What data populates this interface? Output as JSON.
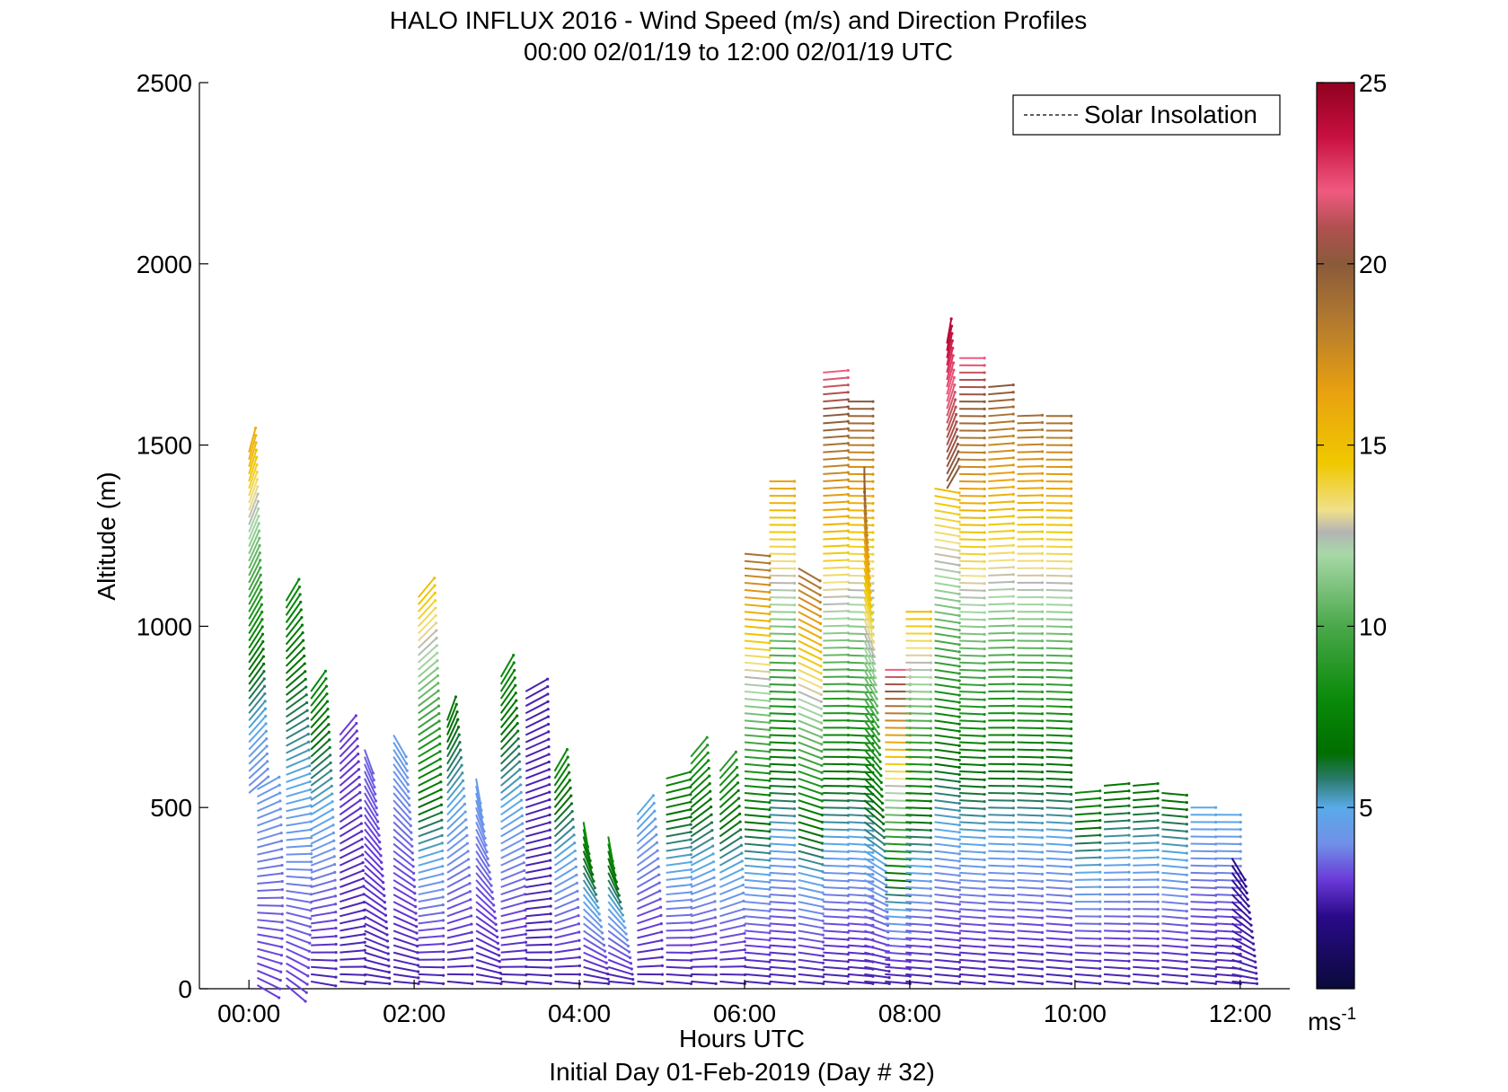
{
  "chart_data": {
    "type": "scatter",
    "title": "HALO INFLUX 2016 - Wind Speed (m/s) and Direction Profiles",
    "subtitle": "00:00 02/01/19 to 12:00 02/01/19  UTC",
    "xlabel": "Hours UTC",
    "xlabel2": "Initial Day 01-Feb-2019 (Day # 32)",
    "ylabel": "Altitude (m)",
    "xlim": [
      -0.6,
      12.6
    ],
    "ylim": [
      0,
      2500
    ],
    "x_ticks": [
      {
        "value": 0,
        "label": "00:00"
      },
      {
        "value": 2,
        "label": "02:00"
      },
      {
        "value": 4,
        "label": "04:00"
      },
      {
        "value": 6,
        "label": "06:00"
      },
      {
        "value": 8,
        "label": "08:00"
      },
      {
        "value": 10,
        "label": "10:00"
      },
      {
        "value": 12,
        "label": "12:00"
      }
    ],
    "y_ticks": [
      {
        "value": 0,
        "label": "0"
      },
      {
        "value": 500,
        "label": "500"
      },
      {
        "value": 1000,
        "label": "1000"
      },
      {
        "value": 1500,
        "label": "1500"
      },
      {
        "value": 2000,
        "label": "2000"
      },
      {
        "value": 2500,
        "label": "2500"
      }
    ],
    "grid": false,
    "legend": {
      "position": "top-right",
      "entries": [
        "Solar Insolation"
      ]
    },
    "colorbar": {
      "min": 0,
      "max": 25,
      "unit": "ms",
      "unit_sup": "-1",
      "ticks": [
        {
          "value": 5,
          "label": "5"
        },
        {
          "value": 10,
          "label": "10"
        },
        {
          "value": 15,
          "label": "15"
        },
        {
          "value": 20,
          "label": "20"
        },
        {
          "value": 25,
          "label": "25"
        }
      ],
      "stops": [
        {
          "v": 0,
          "color": "#0a0a3a"
        },
        {
          "v": 2,
          "color": "#2a0a8a"
        },
        {
          "v": 3,
          "color": "#6a3ad8"
        },
        {
          "v": 4,
          "color": "#7090e8"
        },
        {
          "v": 5,
          "color": "#5aaae8"
        },
        {
          "v": 5.8,
          "color": "#2a7a6a"
        },
        {
          "v": 6.5,
          "color": "#006e00"
        },
        {
          "v": 8,
          "color": "#0a8a0a"
        },
        {
          "v": 10,
          "color": "#4aa84a"
        },
        {
          "v": 12,
          "color": "#a8d8a8"
        },
        {
          "v": 12.6,
          "color": "#b4b4b4"
        },
        {
          "v": 13.2,
          "color": "#f0e08a"
        },
        {
          "v": 14.5,
          "color": "#f0c800"
        },
        {
          "v": 16.5,
          "color": "#e8a010"
        },
        {
          "v": 18.5,
          "color": "#b07830"
        },
        {
          "v": 20,
          "color": "#8a5a3a"
        },
        {
          "v": 21,
          "color": "#b05050"
        },
        {
          "v": 22,
          "color": "#f05a80"
        },
        {
          "v": 23.5,
          "color": "#c81040"
        },
        {
          "v": 25,
          "color": "#900020"
        }
      ]
    },
    "profiles": [
      {
        "t": 0.0,
        "z_top": 1490,
        "z_bot": 540,
        "s_top": 16,
        "s_bot": 4,
        "dir_top": 15,
        "dir_bot": 50
      },
      {
        "t": 0.1,
        "z_top": 560,
        "z_bot": 10,
        "s_top": 4.5,
        "s_bot": 3,
        "dir_top": 60,
        "dir_bot": 120
      },
      {
        "t": 0.45,
        "z_top": 1080,
        "z_bot": 10,
        "s_top": 8,
        "s_bot": 3,
        "dir_top": 30,
        "dir_bot": 130
      },
      {
        "t": 0.75,
        "z_top": 830,
        "z_bot": 20,
        "s_top": 8,
        "s_bot": 2.5,
        "dir_top": 35,
        "dir_bot": 100
      },
      {
        "t": 1.1,
        "z_top": 700,
        "z_bot": 20,
        "s_top": 3,
        "s_bot": 2.5,
        "dir_top": 40,
        "dir_bot": 95
      },
      {
        "t": 1.4,
        "z_top": 660,
        "z_bot": 20,
        "s_top": 3.5,
        "s_bot": 2.5,
        "dir_top": 160,
        "dir_bot": 95
      },
      {
        "t": 1.75,
        "z_top": 700,
        "z_bot": 20,
        "s_top": 4.5,
        "s_bot": 2.5,
        "dir_top": 150,
        "dir_bot": 95
      },
      {
        "t": 2.05,
        "z_top": 1080,
        "z_bot": 20,
        "s_top": 15,
        "s_bot": 2.5,
        "dir_top": 40,
        "dir_bot": 95
      },
      {
        "t": 2.4,
        "z_top": 740,
        "z_bot": 20,
        "s_top": 7,
        "s_bot": 2.5,
        "dir_top": 20,
        "dir_bot": 95
      },
      {
        "t": 2.75,
        "z_top": 580,
        "z_bot": 20,
        "s_top": 4.5,
        "s_bot": 2.5,
        "dir_top": 170,
        "dir_bot": 95
      },
      {
        "t": 3.05,
        "z_top": 860,
        "z_bot": 20,
        "s_top": 8,
        "s_bot": 2.5,
        "dir_top": 30,
        "dir_bot": 95
      },
      {
        "t": 3.35,
        "z_top": 830,
        "z_bot": 20,
        "s_top": 2.5,
        "s_bot": 2.5,
        "dir_top": 60,
        "dir_bot": 95
      },
      {
        "t": 3.7,
        "z_top": 600,
        "z_bot": 20,
        "s_top": 8,
        "s_bot": 2.5,
        "dir_top": 30,
        "dir_bot": 95
      },
      {
        "t": 4.05,
        "z_top": 460,
        "z_bot": 20,
        "s_top": 8,
        "s_bot": 2.5,
        "dir_top": 170,
        "dir_bot": 95
      },
      {
        "t": 4.35,
        "z_top": 420,
        "z_bot": 20,
        "s_top": 8,
        "s_bot": 2.5,
        "dir_top": 170,
        "dir_bot": 95
      },
      {
        "t": 4.7,
        "z_top": 480,
        "z_bot": 20,
        "s_top": 5,
        "s_bot": 2.5,
        "dir_top": 40,
        "dir_bot": 95
      },
      {
        "t": 5.05,
        "z_top": 580,
        "z_bot": 20,
        "s_top": 8,
        "s_bot": 2.5,
        "dir_top": 75,
        "dir_bot": 95
      },
      {
        "t": 5.35,
        "z_top": 640,
        "z_bot": 20,
        "s_top": 9,
        "s_bot": 2.5,
        "dir_top": 40,
        "dir_bot": 95
      },
      {
        "t": 5.7,
        "z_top": 600,
        "z_bot": 20,
        "s_top": 9,
        "s_bot": 2.5,
        "dir_top": 40,
        "dir_bot": 95
      },
      {
        "t": 6.0,
        "z_top": 1210,
        "z_bot": 20,
        "s_top": 19,
        "s_bot": 2.5,
        "dir_top": 95,
        "dir_bot": 95
      },
      {
        "t": 6.3,
        "z_top": 1410,
        "z_bot": 20,
        "s_top": 16.5,
        "s_bot": 2.5,
        "dir_top": 90,
        "dir_bot": 95
      },
      {
        "t": 6.65,
        "z_top": 1160,
        "z_bot": 20,
        "s_top": 19,
        "s_bot": 2.5,
        "dir_top": 120,
        "dir_bot": 95
      },
      {
        "t": 6.95,
        "z_top": 1700,
        "z_bot": 20,
        "s_top": 22,
        "s_bot": 2.5,
        "dir_top": 85,
        "dir_bot": 95
      },
      {
        "t": 7.25,
        "z_top": 1620,
        "z_bot": 20,
        "s_top": 20,
        "s_bot": 2.5,
        "dir_top": 90,
        "dir_bot": 95
      },
      {
        "t": 7.45,
        "z_top": 1450,
        "z_bot": 20,
        "s_top": 20,
        "s_bot": 2.5,
        "dir_top": 180,
        "dir_bot": 95
      },
      {
        "t": 7.7,
        "z_top": 880,
        "z_bot": 20,
        "s_top": 22,
        "s_bot": 2.5,
        "dir_top": 90,
        "dir_bot": 95
      },
      {
        "t": 7.95,
        "z_top": 1040,
        "z_bot": 20,
        "s_top": 15,
        "s_bot": 2.5,
        "dir_top": 90,
        "dir_bot": 95
      },
      {
        "t": 8.3,
        "z_top": 1380,
        "z_bot": 20,
        "s_top": 15,
        "s_bot": 2.5,
        "dir_top": 100,
        "dir_bot": 95
      },
      {
        "t": 8.45,
        "z_top": 1780,
        "z_bot": 1380,
        "s_top": 24,
        "s_bot": 20,
        "dir_top": 10,
        "dir_bot": 30
      },
      {
        "t": 8.6,
        "z_top": 1740,
        "z_bot": 20,
        "s_top": 22,
        "s_bot": 2.5,
        "dir_top": 90,
        "dir_bot": 95
      },
      {
        "t": 8.95,
        "z_top": 1660,
        "z_bot": 20,
        "s_top": 20,
        "s_bot": 2.5,
        "dir_top": 85,
        "dir_bot": 95
      },
      {
        "t": 9.3,
        "z_top": 1580,
        "z_bot": 20,
        "s_top": 19,
        "s_bot": 2.5,
        "dir_top": 88,
        "dir_bot": 95
      },
      {
        "t": 9.65,
        "z_top": 1580,
        "z_bot": 20,
        "s_top": 19,
        "s_bot": 2.5,
        "dir_top": 90,
        "dir_bot": 95
      },
      {
        "t": 10.0,
        "z_top": 550,
        "z_bot": 20,
        "s_top": 8,
        "s_bot": 2.5,
        "dir_top": 85,
        "dir_bot": 95
      },
      {
        "t": 10.35,
        "z_top": 560,
        "z_bot": 20,
        "s_top": 7,
        "s_bot": 2.5,
        "dir_top": 85,
        "dir_bot": 95
      },
      {
        "t": 10.7,
        "z_top": 560,
        "z_bot": 20,
        "s_top": 7,
        "s_bot": 2.5,
        "dir_top": 85,
        "dir_bot": 95
      },
      {
        "t": 11.05,
        "z_top": 550,
        "z_bot": 20,
        "s_top": 7,
        "s_bot": 2.5,
        "dir_top": 95,
        "dir_bot": 95
      },
      {
        "t": 11.4,
        "z_top": 500,
        "z_bot": 20,
        "s_top": 5,
        "s_bot": 2.5,
        "dir_top": 90,
        "dir_bot": 95
      },
      {
        "t": 11.7,
        "z_top": 490,
        "z_bot": 20,
        "s_top": 5,
        "s_bot": 2.5,
        "dir_top": 90,
        "dir_bot": 95
      },
      {
        "t": 11.9,
        "z_top": 370,
        "z_bot": 20,
        "s_top": 2,
        "s_bot": 2.5,
        "dir_top": 150,
        "dir_bot": 95
      }
    ]
  },
  "colors": {
    "axis": "#000000",
    "background": "#ffffff",
    "legend_line": "#000000"
  }
}
